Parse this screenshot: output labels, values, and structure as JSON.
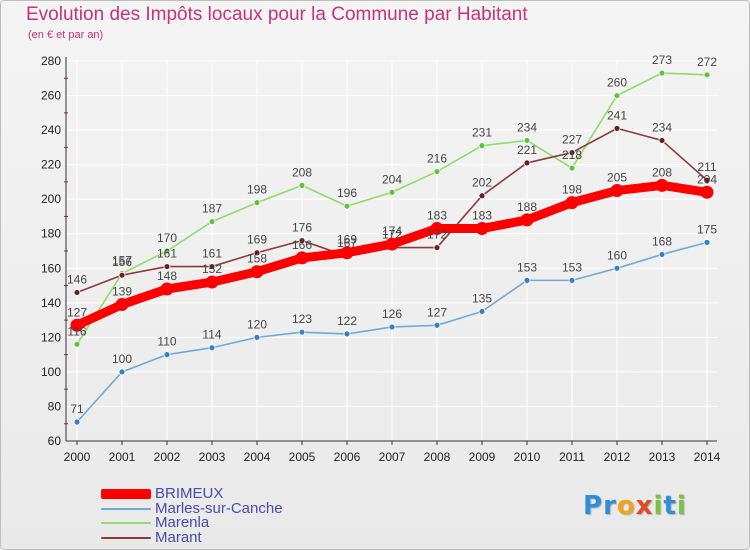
{
  "title": "Evolution des Impôts locaux pour la Commune par Habitant",
  "subtitle": "(en € et par an)",
  "logo": {
    "text": "Proxiti",
    "letters": [
      {
        "ch": "P",
        "color": "#2e8fd6"
      },
      {
        "ch": "r",
        "color": "#2e8fd6"
      },
      {
        "ch": "o",
        "color": "#f2a31c"
      },
      {
        "ch": "x",
        "color": "#e04a25"
      },
      {
        "ch": "i",
        "color": "#7ac143"
      },
      {
        "ch": "t",
        "color": "#2e8fd6"
      },
      {
        "ch": "i",
        "color": "#7ac143"
      }
    ]
  },
  "colors": {
    "title": "#c8327a",
    "grid": "#ffffff",
    "axis": "#333333",
    "tick_marks": "#d0104c",
    "label_text": "#444444"
  },
  "chart_data": {
    "type": "line",
    "x": [
      2000,
      2001,
      2002,
      2003,
      2004,
      2005,
      2006,
      2007,
      2008,
      2009,
      2010,
      2011,
      2012,
      2013,
      2014
    ],
    "ylim": [
      60,
      280
    ],
    "yticks": [
      60,
      80,
      100,
      120,
      140,
      160,
      180,
      200,
      220,
      240,
      260,
      280
    ],
    "grid": true,
    "legend_position": "bottom-left",
    "series": [
      {
        "name": "BRIMEUX",
        "color": "#ff0000",
        "marker_color": "#ff0000",
        "emphasis": true,
        "values": [
          127,
          139,
          148,
          152,
          158,
          166,
          169,
          174,
          183,
          183,
          188,
          198,
          205,
          208,
          204
        ]
      },
      {
        "name": "Marles-sur-Canche",
        "color": "#6fa8d8",
        "marker_color": "#3a7fc4",
        "emphasis": false,
        "values": [
          71,
          100,
          110,
          114,
          120,
          123,
          122,
          126,
          127,
          135,
          153,
          153,
          160,
          168,
          175
        ]
      },
      {
        "name": "Marenla",
        "color": "#8fdc6a",
        "marker_color": "#5cc43a",
        "emphasis": false,
        "values": [
          116,
          157,
          170,
          187,
          198,
          208,
          196,
          204,
          216,
          231,
          234,
          218,
          260,
          273,
          272
        ]
      },
      {
        "name": "Marant",
        "color": "#8b3a3a",
        "marker_color": "#6b1f1f",
        "emphasis": false,
        "values": [
          146,
          156,
          161,
          161,
          169,
          176,
          167,
          172,
          172,
          202,
          221,
          227,
          241,
          234,
          211
        ]
      }
    ]
  }
}
